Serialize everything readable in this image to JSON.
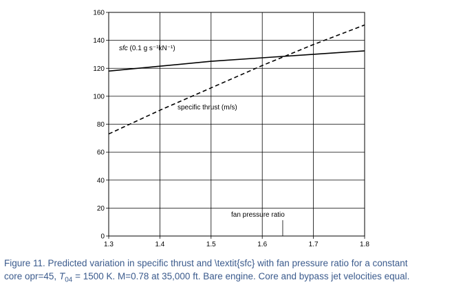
{
  "chart_data": {
    "type": "line",
    "xlim": [
      1.3,
      1.8
    ],
    "ylim": [
      0,
      160
    ],
    "x_ticks": [
      1.3,
      1.4,
      1.5,
      1.6,
      1.7,
      1.8
    ],
    "y_ticks": [
      0,
      20,
      40,
      60,
      80,
      100,
      120,
      140,
      160
    ],
    "x_tick_labels": [
      "1.3",
      "1.4",
      "1.5",
      "1.6",
      "1.7",
      "1.8"
    ],
    "y_tick_labels": [
      "0",
      "20",
      "40",
      "60",
      "80",
      "100",
      "120",
      "140",
      "160"
    ],
    "grid": true,
    "series": [
      {
        "name": "sfc (0.1 g s⁻¹kN⁻¹)",
        "style": "solid",
        "x": [
          1.3,
          1.4,
          1.5,
          1.6,
          1.7,
          1.8
        ],
        "y": [
          118,
          121.5,
          125,
          127.5,
          130,
          132.5
        ]
      },
      {
        "name": "specific thrust (m/s)",
        "style": "dashed",
        "x": [
          1.3,
          1.4,
          1.5,
          1.6,
          1.7,
          1.8
        ],
        "y": [
          73,
          90,
          106,
          122,
          137,
          151
        ]
      }
    ],
    "annotations": {
      "sfc_label_italic": "sfc",
      "sfc_label_rest": " (0.1 g s⁻¹kN⁻¹)",
      "thrust_label": "specific thrust (m/s)",
      "axis_label": "fan pressure ratio"
    }
  },
  "caption": {
    "line1": "Figure 11. Predicted variation in specific thrust and \\textit{sfc} with fan pressure ratio for a constant",
    "line2_pre": "core opr=45, ",
    "line2_T": "T",
    "line2_sub": "04",
    "line2_post": " = 1500 K. M=0.78 at 35,000 ft. Bare engine. Core and bypass jet velocities equal."
  }
}
